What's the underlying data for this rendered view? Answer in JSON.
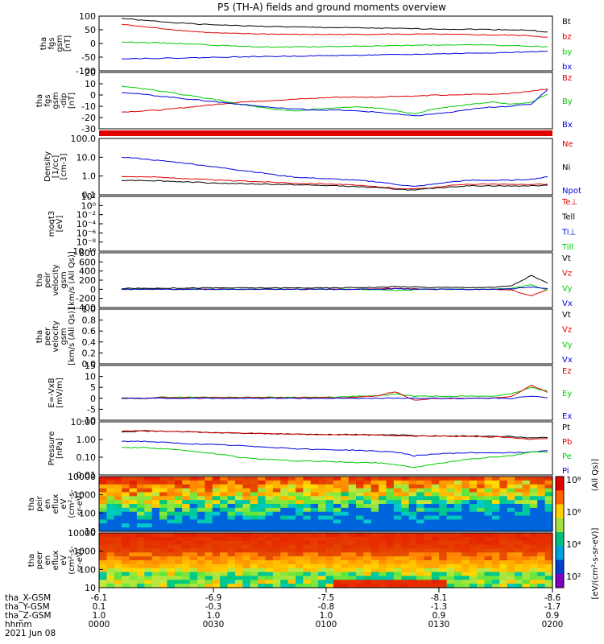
{
  "title": "P5 (TH-A) fields and ground moments overview",
  "colors": {
    "black": "#000000",
    "red": "#e00000",
    "green": "#00cc00",
    "blue": "#0000e0"
  },
  "chart_data": [
    {
      "type": "line",
      "id": "fgs",
      "ylabel": [
        "tha",
        "fgs",
        "gsm",
        "[nT]"
      ],
      "yticks": [
        "100",
        "50",
        "0",
        "-50",
        "-100"
      ],
      "ylim": [
        -100,
        100
      ],
      "legend": [
        "Bt",
        "bz",
        "by",
        "bx"
      ],
      "legend_colors": [
        "#000000",
        "#e00000",
        "#00cc00",
        "#0000e0"
      ],
      "series": [
        {
          "name": "Bt",
          "color": "#000000",
          "values": [
            92,
            85,
            80,
            75,
            70,
            68,
            65,
            63,
            62,
            60,
            59,
            58,
            57,
            56,
            55,
            54,
            53,
            52,
            52,
            51,
            50,
            48,
            40
          ]
        },
        {
          "name": "bz",
          "color": "#e00000",
          "values": [
            70,
            62,
            55,
            48,
            42,
            38,
            36,
            35,
            34,
            33,
            33,
            33,
            33,
            34,
            34,
            34,
            34,
            33,
            32,
            31,
            30,
            28,
            22
          ]
        },
        {
          "name": "by",
          "color": "#00cc00",
          "values": [
            5,
            4,
            2,
            0,
            -3,
            -7,
            -10,
            -12,
            -13,
            -13,
            -12,
            -11,
            -10,
            -9,
            -8,
            -7,
            -6,
            -5,
            -5,
            -6,
            -8,
            -10,
            -12
          ]
        },
        {
          "name": "bx",
          "color": "#0000e0",
          "values": [
            -55,
            -55,
            -54,
            -53,
            -52,
            -50,
            -49,
            -48,
            -47,
            -46,
            -45,
            -44,
            -43,
            -42,
            -41,
            -40,
            -38,
            -37,
            -35,
            -34,
            -33,
            -30,
            -28
          ]
        }
      ]
    },
    {
      "type": "line",
      "id": "fgs2",
      "ylabel": [
        "tha",
        "fgs",
        "gsm",
        "-dip",
        "[nT]"
      ],
      "yticks": [
        "20",
        "10",
        "0",
        "-10",
        "-20",
        "-30"
      ],
      "ylim": [
        -35,
        22
      ],
      "legend": [
        "Bz",
        "By",
        "Bx"
      ],
      "legend_colors": [
        "#e00000",
        "#00cc00",
        "#0000e0"
      ],
      "series": [
        {
          "name": "Bz",
          "color": "#e00000",
          "values": [
            -18,
            -17,
            -16,
            -14,
            -12,
            -10,
            -8,
            -7,
            -6,
            -5,
            -4,
            -3,
            -3,
            -3,
            -2,
            -2,
            -1,
            -1,
            0,
            0,
            1,
            3,
            6
          ]
        },
        {
          "name": "By",
          "color": "#00cc00",
          "values": [
            8,
            6,
            3,
            0,
            -3,
            -6,
            -10,
            -13,
            -16,
            -17,
            -15,
            -14,
            -13,
            -14,
            -16,
            -20,
            -15,
            -12,
            -10,
            -8,
            -10,
            -8,
            2
          ]
        },
        {
          "name": "Bx",
          "color": "#0000e0",
          "values": [
            2,
            0,
            -2,
            -4,
            -6,
            -8,
            -10,
            -12,
            -14,
            -15,
            -16,
            -16,
            -17,
            -18,
            -20,
            -22,
            -20,
            -18,
            -15,
            -13,
            -12,
            -10,
            8
          ]
        }
      ]
    },
    {
      "type": "line",
      "id": "density",
      "ylabel": [
        "Density",
        "[1/cc]",
        "[cm-3]"
      ],
      "yticks": [
        "100.0",
        "10.0",
        "1.0",
        "0.1"
      ],
      "log": true,
      "ylim": [
        0.08,
        200
      ],
      "legend": [
        "Ne",
        "Ni",
        "Npot"
      ],
      "legend_colors": [
        "#e00000",
        "#000000",
        "#0000e0"
      ],
      "series": [
        {
          "name": "Ne",
          "color": "#e00000",
          "values": [
            1.0,
            1.0,
            0.9,
            0.8,
            0.7,
            0.6,
            0.55,
            0.5,
            0.45,
            0.4,
            0.38,
            0.35,
            0.3,
            0.25,
            0.2,
            0.18,
            0.22,
            0.3,
            0.35,
            0.35,
            0.33,
            0.35,
            0.35
          ]
        },
        {
          "name": "Ni",
          "color": "#000000",
          "values": [
            0.6,
            0.6,
            0.55,
            0.5,
            0.45,
            0.4,
            0.38,
            0.36,
            0.34,
            0.32,
            0.3,
            0.28,
            0.25,
            0.22,
            0.18,
            0.15,
            0.2,
            0.25,
            0.28,
            0.28,
            0.27,
            0.28,
            0.3
          ]
        },
        {
          "name": "Npot",
          "color": "#0000e0",
          "values": [
            15,
            12,
            9,
            7,
            5,
            3.5,
            2.5,
            1.8,
            1.2,
            0.9,
            0.8,
            0.7,
            0.6,
            0.5,
            0.35,
            0.25,
            0.35,
            0.5,
            0.6,
            0.6,
            0.6,
            0.7,
            1.0
          ]
        }
      ]
    },
    {
      "type": "line",
      "id": "temp",
      "ylabel": [
        "moqt3",
        "[eV]"
      ],
      "yticks": [
        "10²",
        "10⁰",
        "10⁻²",
        "10⁻⁴",
        "10⁻⁶",
        "10⁻⁸",
        "10⁻¹⁰"
      ],
      "legend": [
        "Te⊥",
        "Tell",
        "Ti⊥",
        "Till"
      ],
      "legend_colors": [
        "#e00000",
        "#000000",
        "#0000e0",
        "#00cc00"
      ],
      "series": []
    },
    {
      "type": "line",
      "id": "peir",
      "ylabel": [
        "tha",
        "peir",
        "velocity",
        "gsm",
        "[km/s (All Qs)]"
      ],
      "yticks": [
        "800",
        "600",
        "400",
        "200",
        "0",
        "-200",
        "-400"
      ],
      "ylim": [
        -400,
        800
      ],
      "legend": [
        "Vt",
        "Vz",
        "Vy",
        "Vx"
      ],
      "legend_colors": [
        "#000000",
        "#e00000",
        "#00cc00",
        "#0000e0"
      ],
      "series": [
        {
          "name": "Vt",
          "color": "#000000",
          "values": [
            20,
            20,
            25,
            25,
            30,
            30,
            30,
            30,
            30,
            30,
            30,
            30,
            40,
            40,
            60,
            50,
            40,
            40,
            40,
            40,
            80,
            300,
            100
          ]
        },
        {
          "name": "Vz",
          "color": "#e00000",
          "values": [
            0,
            0,
            0,
            0,
            0,
            0,
            0,
            0,
            0,
            0,
            0,
            0,
            0,
            10,
            20,
            10,
            0,
            0,
            0,
            0,
            -20,
            -150,
            20
          ]
        },
        {
          "name": "Vy",
          "color": "#00cc00",
          "values": [
            0,
            0,
            0,
            0,
            0,
            0,
            0,
            0,
            0,
            0,
            0,
            0,
            0,
            -10,
            -30,
            -10,
            0,
            0,
            0,
            0,
            20,
            100,
            -50
          ]
        },
        {
          "name": "Vx",
          "color": "#0000e0",
          "values": [
            0,
            0,
            0,
            0,
            0,
            0,
            0,
            0,
            0,
            0,
            0,
            0,
            0,
            0,
            10,
            0,
            0,
            0,
            0,
            0,
            10,
            50,
            0
          ]
        }
      ]
    },
    {
      "type": "line",
      "id": "peer",
      "ylabel": [
        "tha",
        "peer",
        "velocity",
        "gsm",
        "[km/s (All Qs)]"
      ],
      "yticks": [
        "1.0",
        "0.8",
        "0.6",
        "0.4",
        "0.2",
        "0.0"
      ],
      "legend": [
        "Vt",
        "Vz",
        "Vy",
        "Vx"
      ],
      "legend_colors": [
        "#000000",
        "#e00000",
        "#00cc00",
        "#0000e0"
      ],
      "series": []
    },
    {
      "type": "line",
      "id": "efield",
      "ylabel": [
        "E=-VxB",
        "[mV/m]"
      ],
      "yticks": [
        "15",
        "10",
        "5",
        "0",
        "-5",
        "-10"
      ],
      "ylim": [
        -10,
        15
      ],
      "legend": [
        "Ez",
        "Ey",
        "Ex"
      ],
      "legend_colors": [
        "#e00000",
        "#00cc00",
        "#0000e0"
      ],
      "series": [
        {
          "name": "Ey",
          "color": "#00cc00",
          "values": [
            0,
            0,
            0.5,
            0.5,
            0.5,
            0.5,
            0.5,
            0.5,
            0.5,
            0.5,
            0.5,
            0.5,
            1,
            1,
            2,
            1,
            1,
            1,
            1,
            1,
            2,
            5,
            3
          ]
        },
        {
          "name": "Ez",
          "color": "#e00000",
          "values": [
            0,
            0,
            0.3,
            0.3,
            0.3,
            0.3,
            0.3,
            0.3,
            0.3,
            0.3,
            0.3,
            0.3,
            0.5,
            1,
            3,
            -1,
            0,
            0,
            0,
            0,
            1,
            6,
            2
          ]
        },
        {
          "name": "Ex",
          "color": "#0000e0",
          "values": [
            0,
            0,
            0,
            0,
            0,
            0,
            0,
            0,
            0,
            0,
            0,
            0,
            0,
            0,
            0,
            0,
            0,
            0,
            0,
            0,
            0,
            1,
            0
          ]
        }
      ]
    },
    {
      "type": "line",
      "id": "pressure",
      "ylabel": [
        "Pressure",
        "[nPa]"
      ],
      "yticks": [
        "10.00",
        "1.00",
        "0.10",
        "0.01"
      ],
      "log": true,
      "ylim": [
        0.01,
        10
      ],
      "legend": [
        "Pt",
        "Pb",
        "Pe",
        "Pi"
      ],
      "legend_colors": [
        "#000000",
        "#e00000",
        "#00cc00",
        "#0000e0"
      ],
      "series": [
        {
          "name": "Pt",
          "color": "#000000",
          "values": [
            2.5,
            3,
            3,
            2.8,
            2.6,
            2.4,
            2.3,
            2.2,
            2.1,
            2.0,
            2.0,
            1.9,
            1.9,
            1.8,
            1.8,
            1.7,
            1.6,
            1.6,
            1.6,
            1.5,
            1.5,
            1.2,
            1.4
          ]
        },
        {
          "name": "Pb",
          "color": "#e00000",
          "values": [
            3,
            3.2,
            3,
            2.8,
            2.6,
            2.4,
            2.3,
            2.2,
            2.1,
            2.0,
            1.9,
            1.9,
            1.8,
            1.8,
            1.7,
            1.6,
            1.6,
            1.5,
            1.5,
            1.4,
            1.3,
            1.0,
            1.2
          ]
        },
        {
          "name": "Pi",
          "color": "#0000e0",
          "values": [
            0.8,
            0.8,
            0.7,
            0.6,
            0.55,
            0.5,
            0.45,
            0.4,
            0.35,
            0.3,
            0.28,
            0.26,
            0.25,
            0.22,
            0.2,
            0.12,
            0.15,
            0.17,
            0.18,
            0.18,
            0.18,
            0.2,
            0.25
          ]
        },
        {
          "name": "Pe",
          "color": "#00cc00",
          "values": [
            0.35,
            0.35,
            0.3,
            0.25,
            0.2,
            0.15,
            0.1,
            0.08,
            0.07,
            0.06,
            0.06,
            0.055,
            0.05,
            0.05,
            0.04,
            0.025,
            0.04,
            0.06,
            0.08,
            0.1,
            0.12,
            0.2,
            0.2
          ]
        }
      ]
    },
    {
      "type": "heatmap",
      "id": "peir_spec",
      "ylabel": [
        "tha",
        "peir",
        "en",
        "eflux",
        "eV",
        "(cm²-s-",
        "sr-eV)"
      ],
      "yticks": [
        "10000",
        "1000",
        "100",
        "10"
      ]
    },
    {
      "type": "heatmap",
      "id": "peer_spec",
      "ylabel": [
        "tha",
        "peer",
        "en",
        "eflux",
        "eV",
        "(cm²-s-",
        "sr-eV)"
      ],
      "yticks": [
        "10000",
        "1000",
        "100",
        "10"
      ]
    }
  ],
  "colorbar": {
    "ticks": [
      "10⁸",
      "10⁶",
      "10⁴",
      "10²"
    ],
    "label": "[eV/(cm²-s-sr-eV)]",
    "label2": "(All Qs)]"
  },
  "xaxis": {
    "rows": [
      {
        "name": "tha_X-GSM",
        "values": [
          "-6.1",
          "-6.9",
          "-7.5",
          "-8.1",
          "-8.6"
        ]
      },
      {
        "name": "tha_Y-GSM",
        "values": [
          "0.1",
          "-0.3",
          "-0.8",
          "-1.3",
          "-1.7"
        ]
      },
      {
        "name": "tha_Z-GSM",
        "values": [
          "1.0",
          "1.0",
          "1.0",
          "0.9",
          "0.9"
        ]
      },
      {
        "name": "hhmm",
        "values": [
          "0000",
          "0030",
          "0100",
          "0130",
          "0200"
        ]
      }
    ],
    "date": "2021 Jun 08"
  }
}
